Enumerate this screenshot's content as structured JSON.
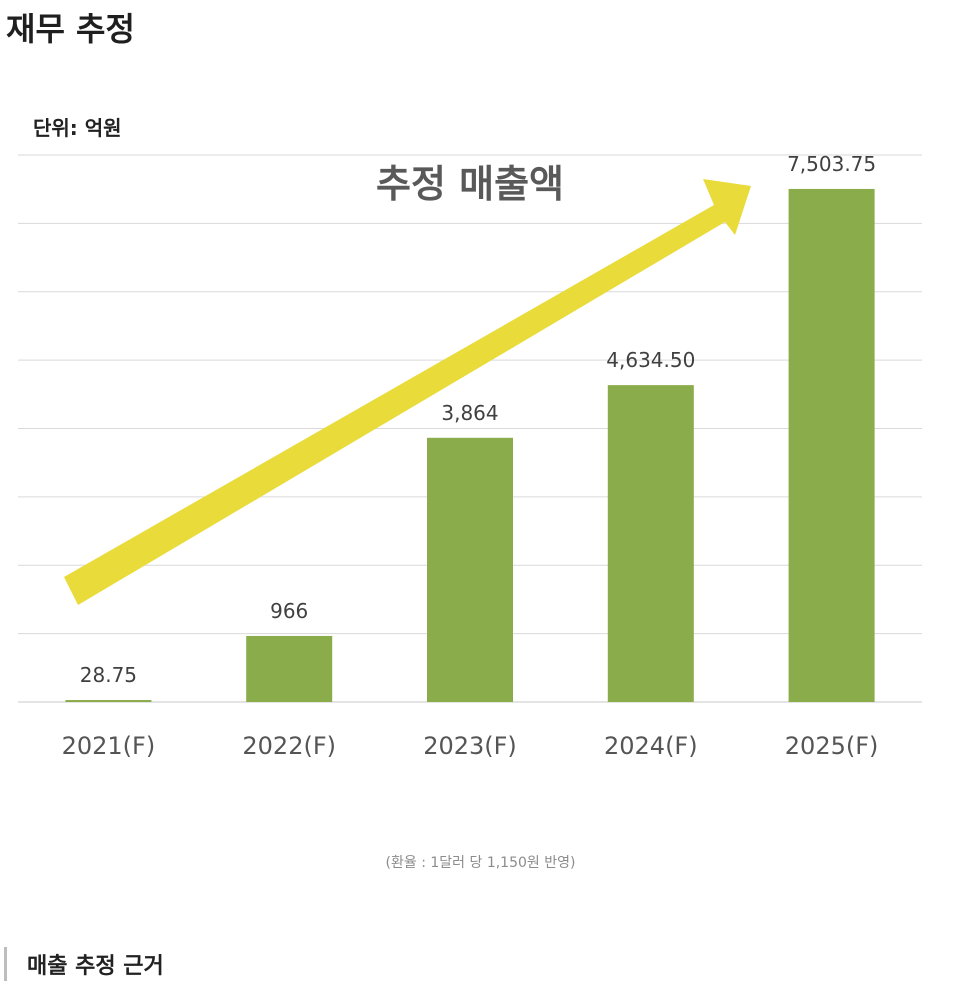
{
  "page": {
    "title": "재무 추정",
    "footnote": "(환율 : 1달러 당 1,150원 반영)",
    "section_heading": "매출 추정 근거"
  },
  "chart_data": {
    "type": "bar",
    "unit_label": "단위: 억원",
    "annotation": "추정 매출액",
    "categories": [
      "2021(F)",
      "2022(F)",
      "2023(F)",
      "2024(F)",
      "2025(F)"
    ],
    "values": [
      28.75,
      966,
      3864,
      4634.5,
      7503.75
    ],
    "data_labels": [
      "28.75",
      "966",
      "3,864",
      "4,634.50",
      "7,503.75"
    ],
    "ylim": [
      0,
      8000
    ],
    "grid": true,
    "colors": {
      "bar": "#8aac4a",
      "arrow": "#e8db3a",
      "grid": "#d9d9d9"
    }
  }
}
